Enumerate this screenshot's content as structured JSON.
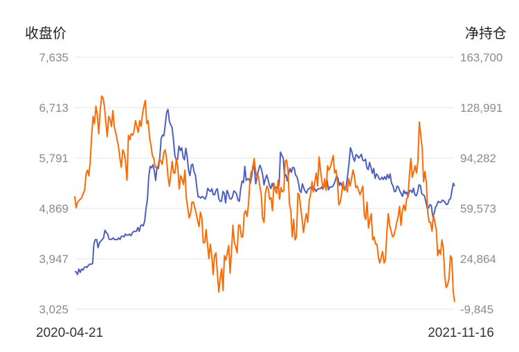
{
  "chart_data": {
    "type": "line",
    "left_axis_title": "收盘价",
    "right_axis_title": "净持仓",
    "x_start_label": "2020-04-21",
    "x_end_label": "2021-11-16",
    "left_ticks": [
      "7,635",
      "6,713",
      "5,791",
      "4,869",
      "3,947",
      "3,025"
    ],
    "right_ticks": [
      "163,700",
      "128,991",
      "94,282",
      "59,573",
      "24,864",
      "-9,845"
    ],
    "left_range": [
      3025,
      7635
    ],
    "right_range": [
      -9845,
      163700
    ],
    "grid": true,
    "colors": {
      "price": "#4a5fc1",
      "net_position": "#ff6a00"
    },
    "series": [
      {
        "axis": "left",
        "values": [
          3715,
          3710,
          3660,
          3760,
          3700,
          3760,
          3740,
          3790,
          3800,
          3790,
          3830,
          3850,
          3850,
          3860,
          4220,
          4300,
          4300,
          4150,
          4240,
          4270,
          4300,
          4330,
          4470,
          4430,
          4400,
          4310,
          4300,
          4310,
          4330,
          4300,
          4300,
          4300,
          4330,
          4300,
          4360,
          4360,
          4350,
          4400,
          4380,
          4380,
          4400,
          4370,
          4420,
          4450,
          4450,
          4450,
          4520,
          4450,
          4550,
          4570,
          4550,
          4640,
          4870,
          5030,
          5450,
          5640,
          5610,
          5670,
          5560,
          5380,
          5630,
          5600,
          5800,
          6150,
          6210,
          6200,
          6400,
          6630,
          6680,
          6460,
          6400,
          6350,
          6120,
          5840,
          5750,
          5770,
          6010,
          5930,
          5980,
          5810,
          5760,
          5970,
          5820,
          5560,
          5470,
          5660,
          5680,
          5540,
          5480,
          5260,
          5080,
          5080,
          5060,
          5090,
          5070,
          5040,
          5100,
          5240,
          5200,
          5180,
          5230,
          5120,
          5120,
          5200,
          5230,
          5050,
          5000,
          5000,
          5180,
          5150,
          4970,
          5200,
          5140,
          5050,
          5040,
          5080,
          5190,
          5170,
          5130,
          5020,
          5000,
          5230,
          5370,
          5340,
          5640,
          5380,
          5410,
          5410,
          5330,
          5460,
          5670,
          5590,
          5320,
          5450,
          5570,
          5660,
          5600,
          5490,
          5300,
          5410,
          5480,
          5390,
          5290,
          5230,
          5330,
          5250,
          5220,
          5260,
          5240,
          5300,
          5900,
          5840,
          5790,
          5450,
          5490,
          5370,
          5510,
          5600,
          5530,
          5620,
          5610,
          5480,
          5450,
          5350,
          5200,
          5160,
          5320,
          5240,
          5180,
          5150,
          5220,
          5230,
          5260,
          5230,
          5200,
          5230,
          5180,
          5220,
          5230,
          5230,
          5260,
          5220,
          5280,
          5280,
          5380,
          5210,
          5260,
          5260,
          5270,
          5310,
          5380,
          5470,
          5420,
          5290,
          5340,
          5270,
          5230,
          5250,
          5280,
          5480,
          5700,
          5980,
          5910,
          5800,
          5730,
          5850,
          5840,
          5790,
          5820,
          5860,
          5750,
          5740,
          5770,
          5610,
          5580,
          5710,
          5620,
          5510,
          5600,
          5420,
          5500,
          5470,
          5410,
          5400,
          5440,
          5400,
          5450,
          5400,
          5490,
          5420,
          5500,
          5330,
          5290,
          5180,
          5180,
          5280,
          5260,
          5190,
          5140,
          5090,
          5200,
          5140,
          5170,
          5080,
          5190,
          5200,
          5160,
          5240,
          5120,
          5100,
          5170,
          5300,
          5290,
          5140,
          5120,
          5100,
          4990,
          4870,
          4880,
          4940,
          4920,
          4720,
          4770,
          4890,
          4930,
          5000,
          4980,
          4980,
          5020,
          5010,
          4980,
          4940,
          4950,
          5030,
          5050,
          5190,
          5330,
          5280
        ]
      },
      {
        "axis": "right",
        "values": [
          68000,
          60000,
          64000,
          65000,
          66000,
          67000,
          70000,
          72000,
          83000,
          86000,
          82000,
          92000,
          110000,
          123000,
          118000,
          130000,
          124000,
          111000,
          127000,
          137000,
          136000,
          130000,
          119000,
          109000,
          123000,
          121000,
          116000,
          127000,
          116000,
          112000,
          107000,
          102000,
          94000,
          88000,
          100000,
          98000,
          91000,
          79000,
          110000,
          107000,
          111000,
          110000,
          113000,
          120000,
          116000,
          112000,
          120000,
          116000,
          125000,
          130000,
          134000,
          118000,
          120000,
          108000,
          103000,
          96000,
          94000,
          88000,
          88000,
          89000,
          94000,
          92000,
          90000,
          98000,
          100000,
          94000,
          82000,
          75000,
          83000,
          92000,
          84000,
          84000,
          94000,
          88000,
          73000,
          82000,
          80000,
          76000,
          86000,
          67000,
          60000,
          53000,
          56000,
          64000,
          64000,
          60000,
          56000,
          51000,
          47000,
          57000,
          53000,
          36000,
          36000,
          45000,
          35000,
          25000,
          35000,
          27000,
          14000,
          27000,
          29000,
          15000,
          2000,
          12000,
          18000,
          3000,
          27000,
          24000,
          29000,
          34000,
          15000,
          30000,
          48000,
          36000,
          33000,
          29000,
          48000,
          48000,
          40000,
          40000,
          56000,
          58000,
          54000,
          62000,
          78000,
          85000,
          86000,
          94000,
          86000,
          81000,
          82000,
          75000,
          70000,
          53000,
          50000,
          70000,
          75000,
          73000,
          66000,
          67000,
          58000,
          77000,
          72000,
          70000,
          79000,
          66000,
          74000,
          71000,
          72000,
          92000,
          93000,
          86000,
          63000,
          58000,
          40000,
          52000,
          38000,
          40000,
          70000,
          69000,
          60000,
          52000,
          43000,
          51000,
          56000,
          50000,
          65000,
          69000,
          78000,
          71000,
          78000,
          84000,
          75000,
          95000,
          86000,
          78000,
          73000,
          80000,
          72000,
          89000,
          86000,
          88000,
          92000,
          96000,
          84000,
          86000,
          78000,
          62000,
          64000,
          70000,
          78000,
          72000,
          74000,
          71000,
          80000,
          75000,
          80000,
          86000,
          82000,
          74000,
          75000,
          72000,
          69000,
          72000,
          75000,
          55000,
          52000,
          64000,
          46000,
          52000,
          56000,
          38000,
          40000,
          35000,
          35000,
          26000,
          22000,
          26000,
          30000,
          22000,
          24000,
          43000,
          56000,
          48000,
          44000,
          40000,
          41000,
          45000,
          50000,
          54000,
          61000,
          48000,
          58000,
          62000,
          58000,
          66000,
          68000,
          83000,
          94000,
          81000,
          85000,
          89000,
          84000,
          92000,
          119000,
          110000,
          101000,
          78000,
          85000,
          77000,
          56000,
          50000,
          50000,
          44000,
          55000,
          50000,
          45000,
          27000,
          31000,
          28000,
          38000,
          32000,
          13000,
          5000,
          7000,
          11000,
          27000,
          25000,
          2000,
          -5000
        ]
      }
    ]
  }
}
